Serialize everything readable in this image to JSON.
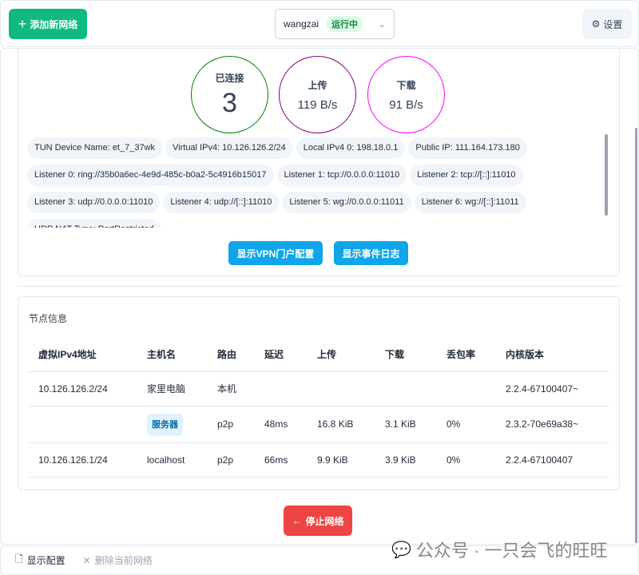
{
  "header": {
    "add_label": "添加新网络",
    "network_name": "wangzai",
    "status": "运行中",
    "settings_label": "设置"
  },
  "stats": {
    "connected_label": "已连接",
    "connected_value": "3",
    "upload_label": "上传",
    "upload_value": "119 B/s",
    "download_label": "下载",
    "download_value": "91 B/s",
    "colors": {
      "connected": "#008000",
      "upload": "#800080",
      "download": "#ff00ff"
    }
  },
  "chips": [
    "TUN Device Name: et_7_37wk",
    "Virtual IPv4: 10.126.126.2/24",
    "Local IPv4 0: 198.18.0.1",
    "Public IP: 111.164.173.180",
    "Listener 0: ring://35b0a6ec-4e9d-485c-b0a2-5c4916b15017",
    "Listener 1: tcp://0.0.0.0:11010",
    "Listener 2: tcp://[::]:11010",
    "Listener 3: udp://0.0.0.0:11010",
    "Listener 4: udp://[::]:11010",
    "Listener 5: wg://0.0.0.0:11011",
    "Listener 6: wg://[::]:11011",
    "UDP NAT Type: PortRestricted"
  ],
  "actions": {
    "vpn_portal": "显示VPN门户配置",
    "event_log": "显示事件日志"
  },
  "peers": {
    "title": "节点信息",
    "columns": [
      "虚拟IPv4地址",
      "主机名",
      "路由",
      "延迟",
      "上传",
      "下载",
      "丢包率",
      "内核版本"
    ],
    "rows": [
      [
        "10.126.126.2/24",
        "家里电脑",
        "本机",
        "",
        "",
        "",
        "",
        "2.2.4-67100407~"
      ],
      [
        "",
        "服务器",
        "p2p",
        "48ms",
        "16.8 KiB",
        "3.1 KiB",
        "0%",
        "2.3.2-70e69a38~"
      ],
      [
        "10.126.126.1/24",
        "localhost",
        "p2p",
        "66ms",
        "9.9 KiB",
        "3.9 KiB",
        "0%",
        "2.2.4-67100407"
      ]
    ]
  },
  "stop_label": "停止网络",
  "footer": {
    "show_config": "显示配置",
    "delete_network": "删除当前网络"
  },
  "watermark": "公众号 · 一只会飞的旺旺"
}
